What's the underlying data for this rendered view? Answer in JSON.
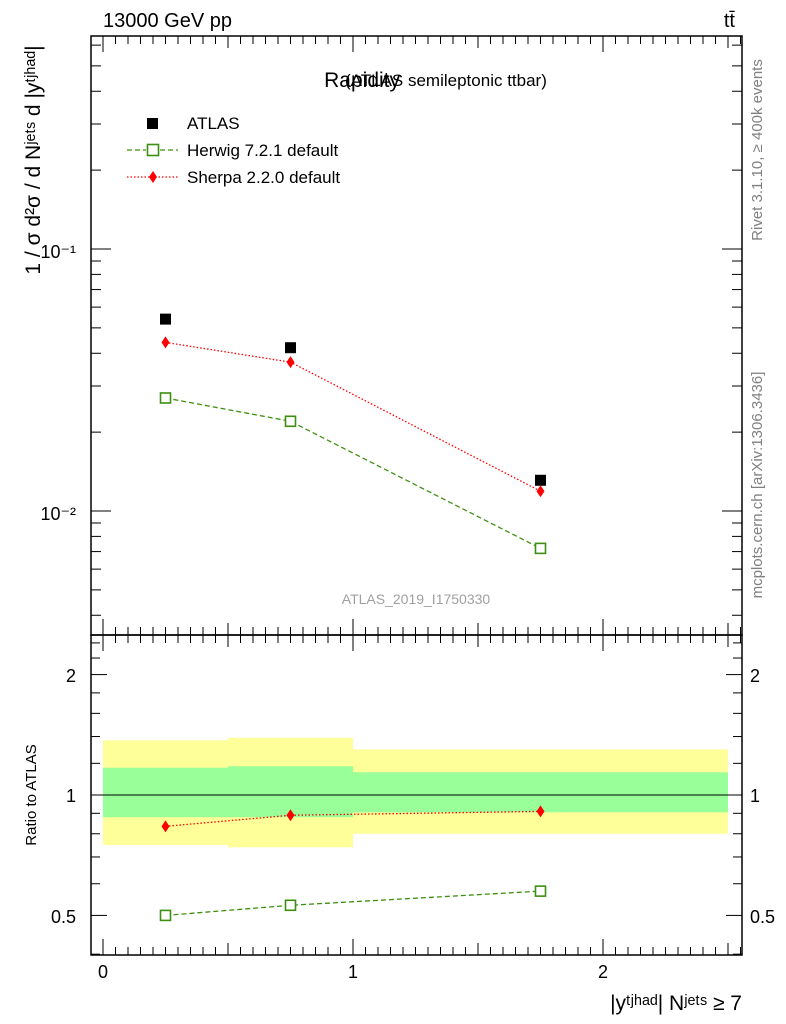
{
  "header": {
    "energy_label": "13000 GeV pp",
    "process_label": "tt̄"
  },
  "side_labels": {
    "rivet": "Rivet 3.1.10, ≥ 400k events",
    "mcplots": "mcplots.cern.ch [arXiv:1306.3436]"
  },
  "main_plot": {
    "title": "Rapidity",
    "subtitle": "(ATLAS semileptonic ttbar)",
    "watermark": "ATLAS_2019_I1750330",
    "ylabel_text": "1 / σ d²σ / d Nʲᵉᵗˢ d |yᵗʲʰᵃᵈ|",
    "ytick_labels": [
      "10⁻¹",
      "10⁻²"
    ],
    "legend": {
      "atlas": "ATLAS",
      "herwig": "Herwig 7.2.1 default",
      "sherpa": "Sherpa 2.2.0 default"
    }
  },
  "ratio_plot": {
    "ylabel": "Ratio to ATLAS",
    "ytick_labels": [
      "2",
      "1",
      "0.5"
    ],
    "xtick_labels": [
      "0",
      "1",
      "2"
    ],
    "xlabel": "|yᵗʲʰᵃᵈ| Nʲᵉᵗˢ ≥ 7"
  },
  "colors": {
    "atlas": "#000000",
    "herwig": "#3d8f0f",
    "sherpa": "#ff0000",
    "band_inner": "#99ff99",
    "band_outer": "#ffff99"
  },
  "chart_data": [
    {
      "type": "scatter",
      "title": "Rapidity",
      "xlabel": "|y^{t,had}| N^{jets} ≥ 7",
      "ylabel": "1 / σ d²σ / d N^{jets} d |y^{t,had}|",
      "yscale": "log",
      "xlim": [
        -0.1,
        2.55
      ],
      "ylim": [
        0.0035,
        0.9
      ],
      "x_edges": [
        0,
        0.5,
        1.0,
        2.5
      ],
      "x": [
        0.25,
        0.75,
        1.75
      ],
      "series": [
        {
          "name": "ATLAS",
          "marker": "square-filled",
          "values": [
            0.054,
            0.042,
            0.0131
          ]
        },
        {
          "name": "Herwig 7.2.1 default",
          "marker": "square-open",
          "line": "dashed",
          "values": [
            0.027,
            0.022,
            0.0072
          ]
        },
        {
          "name": "Sherpa 2.2.0 default",
          "marker": "diamond",
          "line": "dotted",
          "values": [
            0.044,
            0.037,
            0.0119
          ]
        }
      ],
      "legend_position": "top-left"
    },
    {
      "type": "scatter",
      "ylabel": "Ratio to ATLAS",
      "yscale": "log",
      "xlim": [
        -0.1,
        2.55
      ],
      "ylim": [
        0.4,
        2.5
      ],
      "x_edges": [
        0,
        0.5,
        1.0,
        2.5
      ],
      "x": [
        0.25,
        0.75,
        1.75
      ],
      "band_inner": {
        "low": [
          0.88,
          0.88,
          0.905
        ],
        "high": [
          1.17,
          1.18,
          1.14
        ]
      },
      "band_outer": {
        "low": [
          0.75,
          0.74,
          0.8
        ],
        "high": [
          1.37,
          1.39,
          1.3
        ]
      },
      "reference_line": 1,
      "series": [
        {
          "name": "Herwig 7.2.1 default",
          "values": [
            0.5,
            0.53,
            0.575
          ]
        },
        {
          "name": "Sherpa 2.2.0 default",
          "values": [
            0.835,
            0.89,
            0.91
          ]
        }
      ]
    }
  ]
}
